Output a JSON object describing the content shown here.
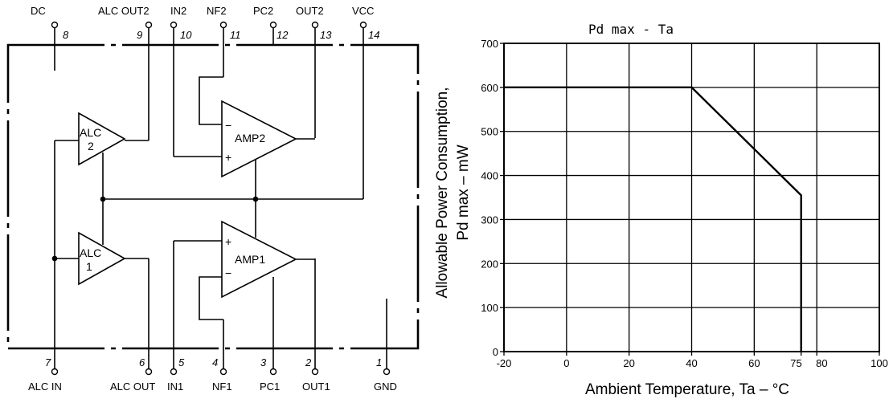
{
  "diagram": {
    "top_pins": [
      {
        "label": "DC",
        "num": "8"
      },
      {
        "label": "ALC OUT2",
        "num": "9"
      },
      {
        "label": "IN2",
        "num": "10"
      },
      {
        "label": "NF2",
        "num": "11"
      },
      {
        "label": "PC2",
        "num": "12"
      },
      {
        "label": "OUT2",
        "num": "13"
      },
      {
        "label": "VCC",
        "num": "14"
      }
    ],
    "bottom_pins": [
      {
        "label": "ALC IN",
        "num": "7"
      },
      {
        "label": "ALC OUT",
        "num": "6"
      },
      {
        "label": "IN1",
        "num": "5"
      },
      {
        "label": "NF1",
        "num": "4"
      },
      {
        "label": "PC1",
        "num": "3"
      },
      {
        "label": "OUT1",
        "num": "2"
      },
      {
        "label": "GND",
        "num": "1"
      }
    ],
    "blocks": {
      "alc2": {
        "line1": "ALC",
        "line2": "2"
      },
      "alc1": {
        "line1": "ALC",
        "line2": "1"
      },
      "amp2": "AMP2",
      "amp1": "AMP1"
    },
    "symbols": {
      "minus": "−",
      "plus": "+"
    }
  },
  "chart_data": {
    "type": "line",
    "title": "Pd max - Ta",
    "xlabel": "Ambient Temperature, Ta – °C",
    "ylabel_line1": "Allowable Power Consumption,",
    "ylabel_line2": "Pd max – mW",
    "xlim": [
      -20,
      100
    ],
    "ylim": [
      0,
      700
    ],
    "x_ticks": [
      -20,
      0,
      20,
      40,
      60,
      75,
      80,
      100
    ],
    "x_tick_labels": [
      "-20",
      "0",
      "20",
      "40",
      "60",
      "75",
      "80",
      "100"
    ],
    "x_grid": [
      -20,
      0,
      20,
      40,
      60,
      80,
      100
    ],
    "y_ticks": [
      0,
      100,
      200,
      300,
      400,
      500,
      600,
      700
    ],
    "y_tick_labels": [
      "0",
      "100",
      "200",
      "300",
      "400",
      "500",
      "600",
      "700"
    ],
    "grid": true,
    "series": [
      {
        "x": [
          -20,
          40,
          75,
          75
        ],
        "y": [
          600,
          600,
          355,
          0
        ]
      }
    ]
  }
}
